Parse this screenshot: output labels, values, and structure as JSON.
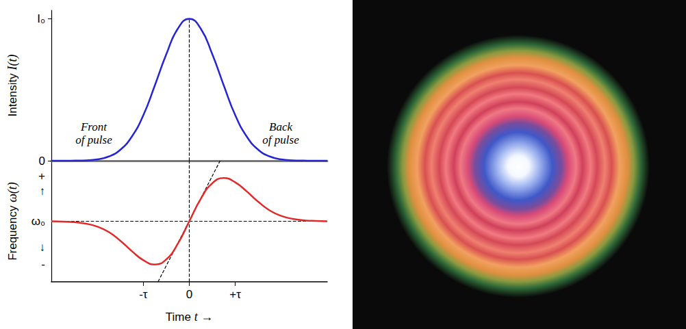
{
  "chart_data": [
    {
      "type": "line",
      "ylabel": "Intensity I(t)",
      "marker": "none",
      "grid": false,
      "tick_labels": "y",
      "xlim": [
        -3,
        3
      ],
      "ylim": [
        0,
        1.06
      ],
      "yticks": [
        0,
        {
          "value": 1,
          "label": "I₀"
        }
      ],
      "annotations": [
        "Front of pulse",
        "Back of pulse"
      ],
      "x": [
        -3,
        -2.75,
        -2.5,
        -2.25,
        -2,
        -1.75,
        -1.5,
        -1.25,
        -1,
        -0.75,
        -0.5,
        -0.25,
        0,
        0.25,
        0.5,
        0.75,
        1,
        1.25,
        1.5,
        1.75,
        2,
        2.25,
        2.5,
        2.75,
        3
      ],
      "series": [
        {
          "color": "#2424d6",
          "values": [
            0,
            0,
            0.001,
            0.003,
            0.01,
            0.03,
            0.077,
            0.17,
            0.32,
            0.53,
            0.75,
            0.93,
            1,
            0.93,
            0.75,
            0.53,
            0.32,
            0.17,
            0.077,
            0.03,
            0.01,
            0.003,
            0.001,
            0,
            0
          ]
        },
        {
          "color": "#000000",
          "line_style": "dashed",
          "x": [
            0,
            0
          ],
          "values": [
            0,
            1
          ]
        }
      ]
    },
    {
      "type": "line",
      "xlabel": "Time t →",
      "ylabel": "Frequency ω(t)",
      "marker": "none",
      "grid": false,
      "xlim": [
        -3,
        3
      ],
      "ylim": [
        -1.4,
        1.4
      ],
      "xticks": [
        {
          "value": -1,
          "label": "-τ"
        },
        0,
        {
          "value": 1,
          "label": "+τ"
        }
      ],
      "yticks": [
        {
          "value": -1,
          "label": "-"
        },
        {
          "value": -0.6,
          "label": "↓"
        },
        {
          "value": 0,
          "label": "ω₀"
        },
        {
          "value": 0.7,
          "label": "↑"
        },
        {
          "value": 1.05,
          "label": "+"
        }
      ],
      "x": [
        -3,
        -2.75,
        -2.5,
        -2.25,
        -2,
        -1.75,
        -1.5,
        -1.25,
        -1,
        -0.75,
        -0.5,
        -0.25,
        0,
        0.25,
        0.5,
        0.75,
        1,
        1.25,
        1.5,
        1.75,
        2,
        2.25,
        2.5,
        2.75,
        3
      ],
      "series": [
        {
          "color": "#000000",
          "line_style": "dashed",
          "x": [
            -3,
            3
          ],
          "values": [
            0,
            0
          ]
        },
        {
          "color": "#000000",
          "line_style": "dashed",
          "x": [
            0,
            0
          ],
          "values": [
            -1.4,
            1.4
          ]
        },
        {
          "color": "#000000",
          "line_style": "dashed",
          "x": [
            -0.68,
            0.67
          ],
          "values": [
            -1.4,
            1.4
          ]
        },
        {
          "color": "#e02a2a",
          "values": [
            0,
            -0.007,
            -0.021,
            -0.055,
            -0.125,
            -0.25,
            -0.45,
            -0.69,
            -0.9,
            -1,
            -0.88,
            -0.52,
            0,
            0.52,
            0.88,
            1,
            0.9,
            0.69,
            0.45,
            0.25,
            0.125,
            0.055,
            0.021,
            0.007,
            0
          ]
        }
      ]
    }
  ]
}
